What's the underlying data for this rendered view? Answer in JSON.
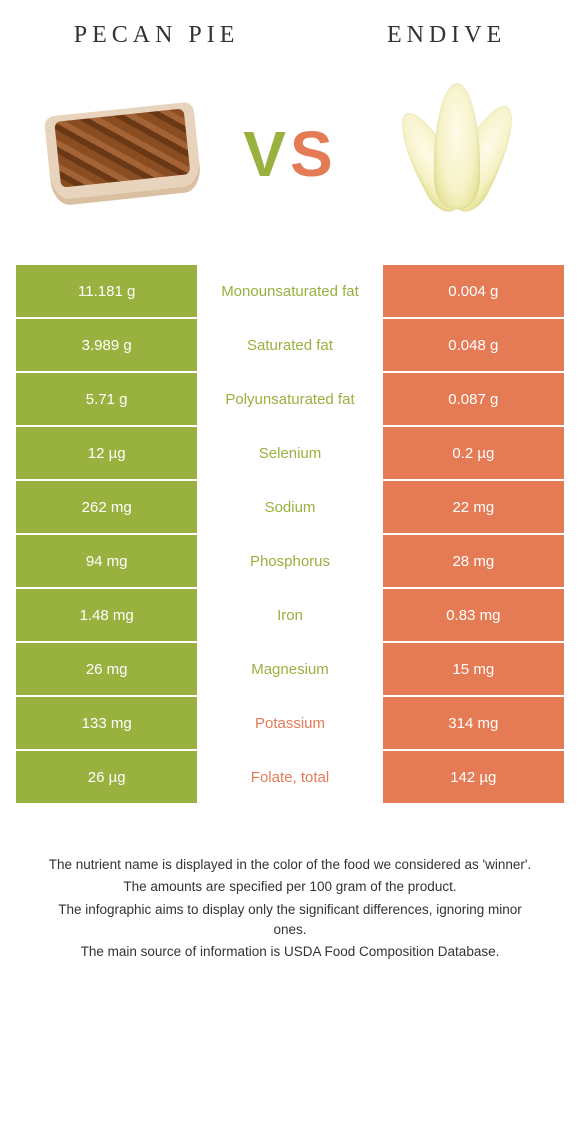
{
  "left_food": {
    "title": "Pecan pie",
    "color": "#98b13f"
  },
  "right_food": {
    "title": "Endive",
    "color": "#e47b55"
  },
  "vs": {
    "v": "V",
    "s": "S"
  },
  "rows": [
    {
      "label": "Monounsaturated fat",
      "left": "11.181 g",
      "right": "0.004 g",
      "winner": "left"
    },
    {
      "label": "Saturated fat",
      "left": "3.989 g",
      "right": "0.048 g",
      "winner": "left"
    },
    {
      "label": "Polyunsaturated fat",
      "left": "5.71 g",
      "right": "0.087 g",
      "winner": "left"
    },
    {
      "label": "Selenium",
      "left": "12 µg",
      "right": "0.2 µg",
      "winner": "left"
    },
    {
      "label": "Sodium",
      "left": "262 mg",
      "right": "22 mg",
      "winner": "left"
    },
    {
      "label": "Phosphorus",
      "left": "94 mg",
      "right": "28 mg",
      "winner": "left"
    },
    {
      "label": "Iron",
      "left": "1.48 mg",
      "right": "0.83 mg",
      "winner": "left"
    },
    {
      "label": "Magnesium",
      "left": "26 mg",
      "right": "15 mg",
      "winner": "left"
    },
    {
      "label": "Potassium",
      "left": "133 mg",
      "right": "314 mg",
      "winner": "right"
    },
    {
      "label": "Folate, total",
      "left": "26 µg",
      "right": "142 µg",
      "winner": "right"
    }
  ],
  "footnotes": [
    "The nutrient name is displayed in the color of the food we considered as 'winner'.",
    "The amounts are specified per 100 gram of the product.",
    "The infographic aims to display only the significant differences, ignoring minor ones.",
    "The main source of information is USDA Food Composition Database."
  ]
}
